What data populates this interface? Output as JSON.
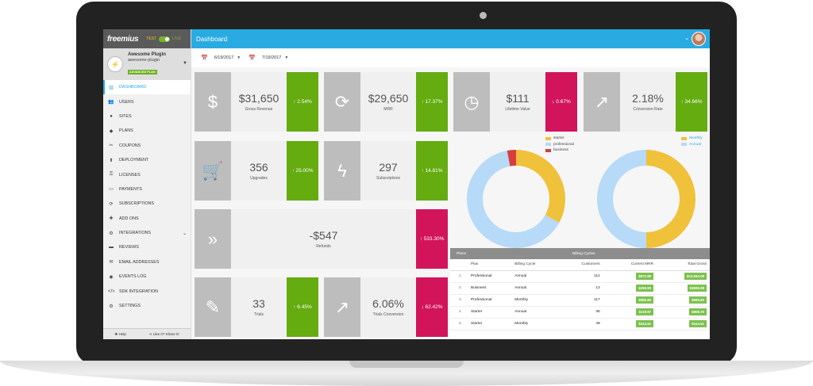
{
  "sidebar": {
    "logo": "freemius",
    "mode_test": "TEST",
    "mode_live": "LIVE",
    "plugin_name": "Awesome Plugin",
    "plugin_slug": "awesome-plugin",
    "plugin_badge": "ADVANCED PLAN",
    "items": [
      {
        "label": "DASHBOARD",
        "icon": "chart-icon"
      },
      {
        "label": "USERS",
        "icon": "users-icon"
      },
      {
        "label": "SITES",
        "icon": "globe-icon"
      },
      {
        "label": "PLANS",
        "icon": "plans-icon"
      },
      {
        "label": "COUPONS",
        "icon": "coupon-icon"
      },
      {
        "label": "DEPLOYMENT",
        "icon": "upload-icon"
      },
      {
        "label": "LICENSES",
        "icon": "key-icon"
      },
      {
        "label": "PAYMENTS",
        "icon": "card-icon"
      },
      {
        "label": "SUBSCRIPTIONS",
        "icon": "refresh-icon"
      },
      {
        "label": "ADD ONS",
        "icon": "puzzle-icon"
      },
      {
        "label": "INTEGRATIONS",
        "icon": "plug-icon"
      },
      {
        "label": "REVIEWS",
        "icon": "comment-icon"
      },
      {
        "label": "EMAIL ADDRESSES",
        "icon": "email-icon"
      },
      {
        "label": "EVENTS LOG",
        "icon": "location-icon"
      },
      {
        "label": "SDK INTEGRATION",
        "icon": "code-icon"
      },
      {
        "label": "SETTINGS",
        "icon": "gear-icon"
      }
    ],
    "footer_help": "Help",
    "footer_share": "Like it? Share it!"
  },
  "topbar": {
    "title": "Dashboard"
  },
  "dates": {
    "from": "6/19/2017",
    "to": "7/19/2017"
  },
  "cards": [
    {
      "value": "$31,650",
      "label": "Gross Revenue",
      "change": "↑ 2.54%",
      "dir": "up",
      "icon": "dollar-icon"
    },
    {
      "value": "$29,650",
      "label": "MRR",
      "change": "↑ 17.37%",
      "dir": "up",
      "icon": "refresh-icon"
    },
    {
      "value": "$111",
      "label": "Lifetime Value",
      "change": "↓ 0.67%",
      "dir": "down",
      "icon": "clock-icon"
    },
    {
      "value": "2.18%",
      "label": "Conversion Rate",
      "change": "↑ 34.66%",
      "dir": "up",
      "icon": "trend-icon"
    },
    {
      "value": "356",
      "label": "Upgrades",
      "change": "↑ 25.00%",
      "dir": "up",
      "icon": "cart-icon"
    },
    {
      "value": "297",
      "label": "Subscriptions",
      "change": "↑ 14.81%",
      "dir": "up",
      "icon": "bolt-icon"
    },
    {
      "value": "-$547",
      "label": "Refunds",
      "change": "↑ 533.30%",
      "dir": "down",
      "icon": "double-chevron-icon"
    },
    {
      "value": "33",
      "label": "Trials",
      "change": "↑ 6.45%",
      "dir": "up",
      "icon": "dropper-icon"
    },
    {
      "value": "6.06%",
      "label": "Trials Conversion",
      "change": "↓ 62.42%",
      "dir": "down",
      "icon": "trend-icon"
    }
  ],
  "colors": {
    "up": "#64ac0f",
    "down": "#d2145b",
    "accent": "#29abe2",
    "starter": "#f0c13a",
    "professional": "#b6daf7",
    "business": "#d63e3e"
  },
  "chart_data": [
    {
      "type": "pie",
      "categories": [
        "starter",
        "professional",
        "business"
      ],
      "values": [
        33,
        64,
        3
      ],
      "legend": "top-right"
    },
    {
      "type": "pie",
      "categories": [
        "Monthly",
        "Annual"
      ],
      "values": [
        50,
        50
      ],
      "legend": "top-right"
    }
  ],
  "table": {
    "group_plans": "Plans",
    "group_cycles": "Billing Cycles",
    "headers": [
      "",
      "Plan",
      "Billing Cycle",
      "Customers",
      "Current MRR",
      "Total Gross"
    ],
    "rows": [
      [
        "1.",
        "Professional",
        "Annual",
        "112",
        "$872.89",
        "$12,094.08"
      ],
      [
        "2.",
        "Business",
        "Annual",
        "13",
        "$299.90",
        "$3599.08"
      ],
      [
        "3.",
        "Professional",
        "Monthly",
        "117",
        "$985.80",
        "$985.80"
      ],
      [
        "4.",
        "Starter",
        "Annual",
        "36",
        "$119.97",
        "$908.76"
      ],
      [
        "5.",
        "Starter",
        "Monthly",
        "49",
        "$244.51",
        "$244.51"
      ]
    ]
  }
}
